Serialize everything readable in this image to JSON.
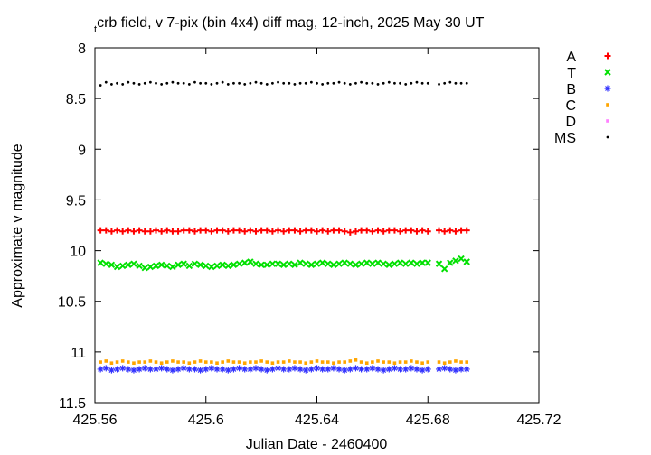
{
  "chart_data": {
    "type": "scatter",
    "title_sub": "t",
    "title": "crb field, v 7-pix (bin 4x4) diff mag, 12-inch, 2025 May 30 UT",
    "xlabel": "Julian Date - 2460400",
    "ylabel": "Approximate v magnitude",
    "xlim": [
      425.56,
      425.72
    ],
    "ylim": [
      11.5,
      8
    ],
    "y_reversed": true,
    "xticks": [
      425.56,
      425.6,
      425.64,
      425.68,
      425.72
    ],
    "yticks": [
      8,
      8.5,
      9,
      9.5,
      10,
      10.5,
      11,
      11.5
    ],
    "legend": "outside-top-right",
    "x": [
      425.562,
      425.564,
      425.566,
      425.568,
      425.57,
      425.572,
      425.574,
      425.576,
      425.578,
      425.58,
      425.582,
      425.584,
      425.586,
      425.588,
      425.59,
      425.592,
      425.594,
      425.596,
      425.598,
      425.6,
      425.602,
      425.604,
      425.606,
      425.608,
      425.61,
      425.612,
      425.614,
      425.616,
      425.618,
      425.62,
      425.622,
      425.624,
      425.626,
      425.628,
      425.63,
      425.632,
      425.634,
      425.636,
      425.638,
      425.64,
      425.642,
      425.644,
      425.646,
      425.648,
      425.65,
      425.652,
      425.654,
      425.656,
      425.658,
      425.66,
      425.662,
      425.664,
      425.666,
      425.668,
      425.67,
      425.672,
      425.674,
      425.676,
      425.678,
      425.68,
      425.684,
      425.686,
      425.688,
      425.69,
      425.692,
      425.694
    ],
    "series": [
      {
        "name": "A",
        "color": "#ff0000",
        "marker": "plus",
        "values": [
          9.8,
          9.8,
          9.81,
          9.8,
          9.81,
          9.8,
          9.81,
          9.8,
          9.81,
          9.81,
          9.8,
          9.81,
          9.8,
          9.81,
          9.81,
          9.8,
          9.8,
          9.81,
          9.8,
          9.8,
          9.81,
          9.8,
          9.8,
          9.81,
          9.8,
          9.8,
          9.81,
          9.8,
          9.81,
          9.8,
          9.8,
          9.81,
          9.8,
          9.81,
          9.8,
          9.8,
          9.81,
          9.8,
          9.8,
          9.81,
          9.8,
          9.81,
          9.8,
          9.8,
          9.81,
          9.82,
          9.81,
          9.8,
          9.8,
          9.81,
          9.8,
          9.81,
          9.8,
          9.8,
          9.81,
          9.8,
          9.8,
          9.81,
          9.8,
          9.81,
          9.8,
          9.81,
          9.8,
          9.81,
          9.8,
          9.8
        ]
      },
      {
        "name": "T",
        "color": "#00e000",
        "marker": "cross",
        "values": [
          10.12,
          10.13,
          10.14,
          10.16,
          10.15,
          10.14,
          10.13,
          10.15,
          10.17,
          10.16,
          10.15,
          10.14,
          10.15,
          10.16,
          10.14,
          10.13,
          10.15,
          10.13,
          10.14,
          10.15,
          10.16,
          10.15,
          10.14,
          10.15,
          10.14,
          10.13,
          10.12,
          10.11,
          10.13,
          10.14,
          10.14,
          10.13,
          10.13,
          10.14,
          10.13,
          10.14,
          10.12,
          10.13,
          10.14,
          10.13,
          10.12,
          10.13,
          10.14,
          10.13,
          10.12,
          10.13,
          10.14,
          10.13,
          10.12,
          10.13,
          10.12,
          10.13,
          10.14,
          10.13,
          10.12,
          10.13,
          10.12,
          10.13,
          10.12,
          10.12,
          10.13,
          10.18,
          10.12,
          10.1,
          10.08,
          10.11
        ]
      },
      {
        "name": "B",
        "color": "#3030ff",
        "marker": "star",
        "values": [
          11.17,
          11.16,
          11.18,
          11.17,
          11.16,
          11.17,
          11.18,
          11.17,
          11.16,
          11.17,
          11.17,
          11.16,
          11.17,
          11.18,
          11.17,
          11.16,
          11.17,
          11.17,
          11.18,
          11.17,
          11.16,
          11.17,
          11.17,
          11.18,
          11.17,
          11.16,
          11.17,
          11.17,
          11.16,
          11.17,
          11.18,
          11.17,
          11.16,
          11.17,
          11.17,
          11.16,
          11.17,
          11.18,
          11.17,
          11.16,
          11.17,
          11.17,
          11.16,
          11.17,
          11.18,
          11.17,
          11.16,
          11.17,
          11.17,
          11.16,
          11.17,
          11.18,
          11.17,
          11.16,
          11.17,
          11.17,
          11.16,
          11.17,
          11.18,
          11.17,
          11.17,
          11.16,
          11.17,
          11.18,
          11.17,
          11.17
        ]
      },
      {
        "name": "C",
        "color": "#ffa500",
        "marker": "square",
        "values": [
          11.1,
          11.09,
          11.11,
          11.1,
          11.09,
          11.1,
          11.11,
          11.1,
          11.1,
          11.09,
          11.1,
          11.11,
          11.1,
          11.09,
          11.1,
          11.1,
          11.11,
          11.1,
          11.09,
          11.1,
          11.1,
          11.11,
          11.1,
          11.09,
          11.1,
          11.1,
          11.11,
          11.1,
          11.1,
          11.09,
          11.1,
          11.11,
          11.1,
          11.1,
          11.09,
          11.1,
          11.1,
          11.11,
          11.1,
          11.09,
          11.1,
          11.1,
          11.11,
          11.1,
          11.1,
          11.09,
          11.08,
          11.1,
          11.11,
          11.1,
          11.09,
          11.1,
          11.1,
          11.11,
          11.1,
          11.1,
          11.09,
          11.1,
          11.11,
          11.1,
          11.1,
          11.11,
          11.1,
          11.09,
          11.1,
          11.1
        ]
      },
      {
        "name": "D",
        "color": "#ff80ff",
        "marker": "square",
        "values": [
          null,
          null,
          null,
          null,
          null,
          null,
          null,
          null,
          null,
          null,
          null,
          null,
          null,
          null,
          null,
          null,
          null,
          null,
          null,
          null,
          null,
          null,
          null,
          null,
          null,
          null,
          null,
          null,
          null,
          null,
          null,
          null,
          null,
          null,
          null,
          null,
          null,
          null,
          null,
          null,
          null,
          null,
          null,
          null,
          null,
          null,
          null,
          null,
          null,
          null,
          null,
          null,
          null,
          null,
          null,
          null,
          null,
          null,
          null,
          null,
          null,
          null,
          null,
          null,
          null,
          null
        ]
      },
      {
        "name": "MS",
        "color": "#000000",
        "marker": "dot",
        "values": [
          8.37,
          8.34,
          8.36,
          8.35,
          8.36,
          8.34,
          8.35,
          8.36,
          8.35,
          8.34,
          8.35,
          8.36,
          8.35,
          8.34,
          8.35,
          8.35,
          8.36,
          8.34,
          8.35,
          8.35,
          8.36,
          8.35,
          8.34,
          8.36,
          8.35,
          8.35,
          8.36,
          8.35,
          8.34,
          8.35,
          8.36,
          8.35,
          8.34,
          8.35,
          8.35,
          8.36,
          8.35,
          8.35,
          8.34,
          8.35,
          8.36,
          8.35,
          8.35,
          8.34,
          8.35,
          8.36,
          8.35,
          8.34,
          8.35,
          8.35,
          8.36,
          8.35,
          8.34,
          8.35,
          8.35,
          8.36,
          8.35,
          8.34,
          8.35,
          8.35,
          8.36,
          8.35,
          8.34,
          8.35,
          8.35,
          8.35
        ]
      }
    ]
  }
}
